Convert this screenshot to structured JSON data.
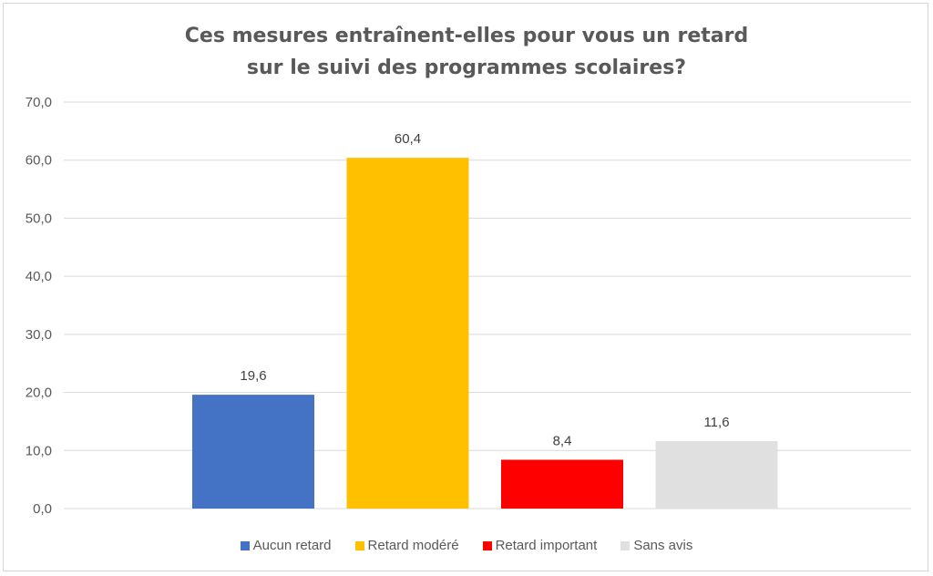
{
  "chart_data": {
    "type": "bar",
    "title_lines": [
      "Ces mesures entraînent-elles pour vous un retard",
      "sur le suivi des programmes scolaires?"
    ],
    "categories": [
      "Aucun retard",
      "Retard modéré",
      "Retard important",
      "Sans avis"
    ],
    "values": [
      19.6,
      60.4,
      8.4,
      11.6
    ],
    "data_labels": [
      "19,6",
      "60,4",
      "8,4",
      "11,6"
    ],
    "colors": [
      "#4472C4",
      "#FFC000",
      "#FF0000",
      "#E0E0E0"
    ],
    "yticks": [
      "0,0",
      "10,0",
      "20,0",
      "30,0",
      "40,0",
      "50,0",
      "60,0",
      "70,0"
    ],
    "ylim": [
      0,
      70
    ],
    "grid": true,
    "legend_position": "bottom"
  }
}
